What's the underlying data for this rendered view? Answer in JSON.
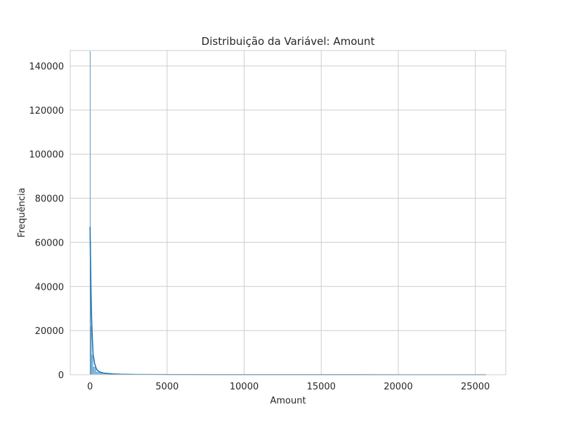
{
  "chart_data": {
    "type": "histogram",
    "title": "Distribuição da Variável: Amount",
    "xlabel": "Amount",
    "ylabel": "Frequência",
    "xlim": [
      -1285,
      26976
    ],
    "ylim": [
      0,
      147000
    ],
    "x_ticks": [
      0,
      5000,
      10000,
      15000,
      20000,
      25000
    ],
    "x_tick_labels": [
      "0",
      "5000",
      "10000",
      "15000",
      "20000",
      "25000"
    ],
    "y_ticks": [
      0,
      20000,
      40000,
      60000,
      80000,
      100000,
      120000,
      140000
    ],
    "y_tick_labels": [
      "0",
      "20000",
      "40000",
      "60000",
      "80000",
      "100000",
      "120000",
      "140000"
    ],
    "grid": true,
    "bars": [
      {
        "x0": 0,
        "x1": 25,
        "value": 146500
      },
      {
        "x0": 25,
        "x1": 50,
        "value": 60000
      },
      {
        "x0": 50,
        "x1": 100,
        "value": 22000
      },
      {
        "x0": 100,
        "x1": 200,
        "value": 9000
      },
      {
        "x0": 200,
        "x1": 400,
        "value": 3500
      },
      {
        "x0": 400,
        "x1": 800,
        "value": 1200
      },
      {
        "x0": 800,
        "x1": 1600,
        "value": 400
      },
      {
        "x0": 1600,
        "x1": 3000,
        "value": 120
      }
    ],
    "kde": {
      "x": [
        0,
        30,
        60,
        100,
        150,
        200,
        300,
        400,
        500,
        700,
        1000,
        1500,
        2000,
        3000,
        5000,
        8000,
        12000,
        16000,
        20000,
        25691
      ],
      "y": [
        67000,
        52000,
        38000,
        26000,
        16000,
        9000,
        5000,
        2800,
        1800,
        1000,
        600,
        350,
        220,
        120,
        60,
        30,
        15,
        8,
        4,
        0
      ]
    },
    "colors": {
      "bar": "#1f77b4",
      "kde": "#1f77b4",
      "grid": "#cccccc",
      "frame": "#cccccc",
      "text": "#262626"
    }
  }
}
